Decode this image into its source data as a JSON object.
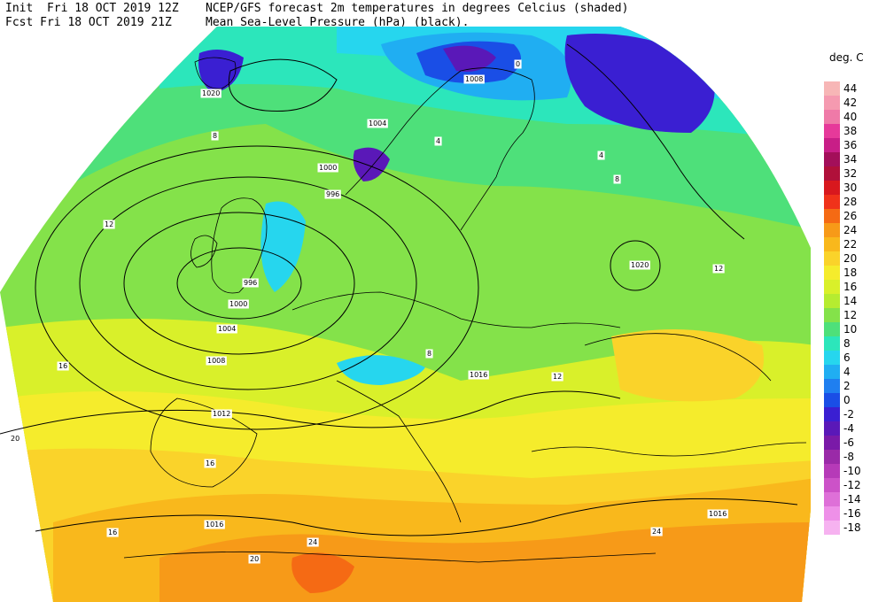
{
  "header": {
    "init_line": "Init  Fri 18 OCT 2019 12Z",
    "fcst_line": "Fcst Fri 18 OCT 2019 21Z",
    "title_line": "NCEP/GFS forecast 2m temperatures in degrees Celcius (shaded)",
    "subtitle_line": "Mean Sea-Level Pressure (hPa) (black)."
  },
  "legend": {
    "title": "deg. C",
    "entries": [
      {
        "label": "44",
        "color": "#f7b6b6"
      },
      {
        "label": "42",
        "color": "#f59ab0"
      },
      {
        "label": "40",
        "color": "#ef7aa8"
      },
      {
        "label": "38",
        "color": "#e6399a"
      },
      {
        "label": "36",
        "color": "#c81e87"
      },
      {
        "label": "34",
        "color": "#a30f5a"
      },
      {
        "label": "32",
        "color": "#b0103a"
      },
      {
        "label": "30",
        "color": "#d8181e"
      },
      {
        "label": "28",
        "color": "#f0321a"
      },
      {
        "label": "26",
        "color": "#f56a14"
      },
      {
        "label": "24",
        "color": "#f79a18"
      },
      {
        "label": "22",
        "color": "#f9b81c"
      },
      {
        "label": "20",
        "color": "#fad32a"
      },
      {
        "label": "18",
        "color": "#f5ec2c"
      },
      {
        "label": "16",
        "color": "#d9f02a"
      },
      {
        "label": "14",
        "color": "#b6ec30"
      },
      {
        "label": "12",
        "color": "#84e24a"
      },
      {
        "label": "10",
        "color": "#4ee07a"
      },
      {
        "label": "8",
        "color": "#2ce6bb"
      },
      {
        "label": "6",
        "color": "#26d6ee"
      },
      {
        "label": "4",
        "color": "#20aef2"
      },
      {
        "label": "2",
        "color": "#1f7ff0"
      },
      {
        "label": "0",
        "color": "#1a4ee6"
      },
      {
        "label": "-2",
        "color": "#3a1fd2"
      },
      {
        "label": "-4",
        "color": "#5a18b8"
      },
      {
        "label": "-6",
        "color": "#7a1aa8"
      },
      {
        "label": "-8",
        "color": "#9a2aa8"
      },
      {
        "label": "-10",
        "color": "#b63ab8"
      },
      {
        "label": "-12",
        "color": "#cc52c8"
      },
      {
        "label": "-14",
        "color": "#de70d8"
      },
      {
        "label": "-16",
        "color": "#ee90e8"
      },
      {
        "label": "-18",
        "color": "#f6b2f0"
      }
    ]
  },
  "map": {
    "pressure_labels": [
      "1020",
      "1004",
      "1000",
      "996",
      "996",
      "1000",
      "1004",
      "1008",
      "1012",
      "1016",
      "1016",
      "1016",
      "1008",
      "1020"
    ],
    "temperature_labels": [
      "8",
      "4",
      "12",
      "16",
      "20",
      "24",
      "12",
      "8",
      "4",
      "0",
      "8",
      "12",
      "16",
      "20",
      "24",
      "16"
    ]
  }
}
